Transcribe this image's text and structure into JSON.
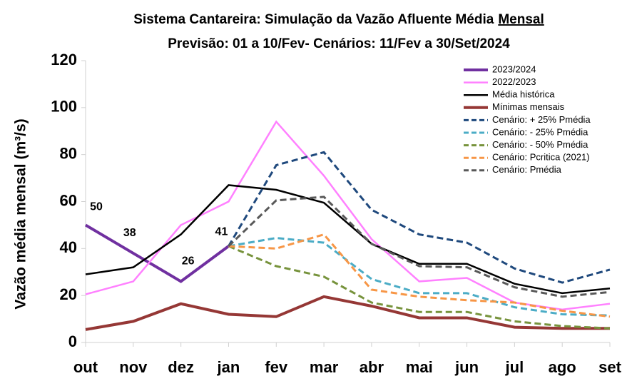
{
  "chart_data": {
    "type": "line",
    "title": [
      "Sistema Cantareira: Simulação da Vazão Afluente Média",
      "Mensal"
    ],
    "subtitle": "Previsão: 01 a 10/Fev- Cenários: 11/Fev a 30/Set/2024",
    "y_label": "Vazão média mensal (m³/s)",
    "categories": [
      "out",
      "nov",
      "dez",
      "jan",
      "fev",
      "mar",
      "abr",
      "mai",
      "jun",
      "jul",
      "ago",
      "set"
    ],
    "ylim": [
      0,
      120
    ],
    "yticks": [
      0,
      20,
      40,
      60,
      80,
      100,
      120
    ],
    "legend": "upper right",
    "series": [
      {
        "name": "2023/2024",
        "color": "#7030a0",
        "width": 4,
        "dashed": false,
        "values": [
          50,
          38,
          26,
          41,
          null,
          null,
          null,
          null,
          null,
          null,
          null,
          null
        ],
        "labels": true
      },
      {
        "name": "2022/2023",
        "color": "#ff80ff",
        "width": 2.5,
        "dashed": false,
        "values": [
          20.5,
          26,
          50,
          60,
          94,
          71,
          44,
          26,
          27.5,
          17,
          14,
          16.5
        ]
      },
      {
        "name": "Média histórica",
        "color": "#000000",
        "width": 2.5,
        "dashed": false,
        "values": [
          29,
          32,
          46,
          67,
          65,
          59.5,
          42,
          33.5,
          33.5,
          25,
          21,
          23
        ]
      },
      {
        "name": "Mínimas mensais",
        "color": "#953735",
        "width": 4,
        "dashed": false,
        "values": [
          5.5,
          9,
          16.5,
          12,
          11,
          19.5,
          15.5,
          10.5,
          10.5,
          6.5,
          6,
          6
        ]
      },
      {
        "name": "Cenário: + 25% Pmédia",
        "color": "#1f497d",
        "width": 3,
        "dashed": true,
        "values": [
          null,
          null,
          null,
          41,
          75.5,
          81,
          56.5,
          46,
          42.5,
          31.5,
          25.5,
          31
        ]
      },
      {
        "name": "Cenário: - 25% Pmédia",
        "color": "#4bacc6",
        "width": 3,
        "dashed": true,
        "values": [
          null,
          null,
          null,
          41,
          44.5,
          42.5,
          27,
          21,
          21,
          15,
          12,
          11.5
        ]
      },
      {
        "name": "Cenário: - 50% Pmédia",
        "color": "#77933c",
        "width": 3,
        "dashed": true,
        "values": [
          null,
          null,
          null,
          41,
          32.5,
          28,
          17,
          13,
          13,
          9,
          7,
          6
        ]
      },
      {
        "name": "Cenário: Pcritica (2021)",
        "color": "#f79646",
        "width": 3,
        "dashed": true,
        "values": [
          null,
          null,
          null,
          41,
          40,
          46,
          22.5,
          19.5,
          18,
          17,
          13.5,
          11
        ]
      },
      {
        "name": "Cenário: Pmédia",
        "color": "#595959",
        "width": 3,
        "dashed": true,
        "values": [
          null,
          null,
          null,
          41,
          60.5,
          62,
          42,
          32.5,
          32,
          23.5,
          19.5,
          21.5
        ]
      }
    ]
  }
}
